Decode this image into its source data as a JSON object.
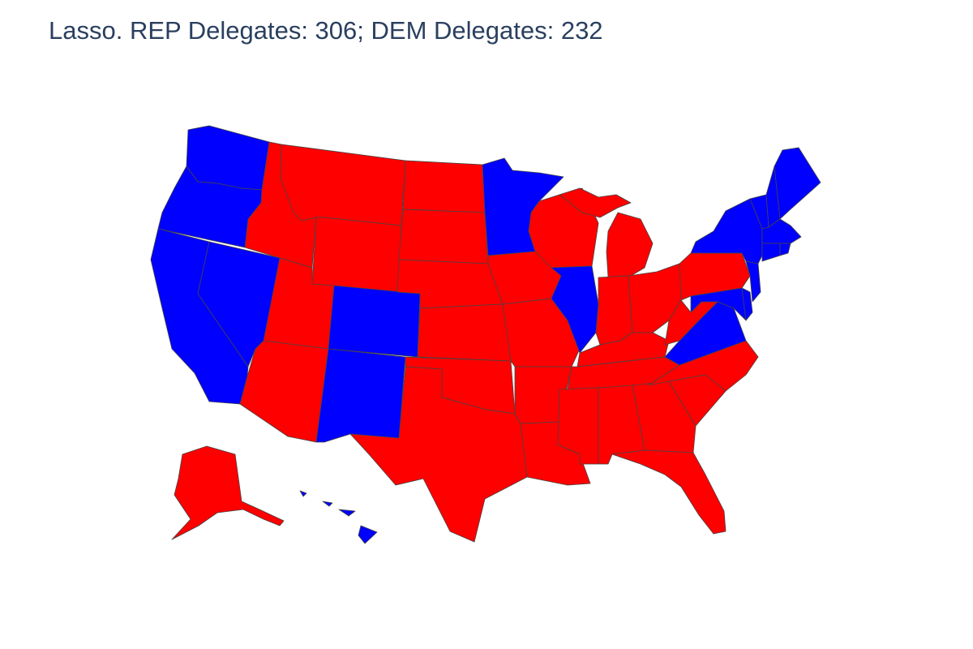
{
  "title": "Lasso. REP Delegates: 306; DEM Delegates: 232",
  "colors": {
    "REP": "#ff0000",
    "DEM": "#0000ff",
    "border": "#444444",
    "title": "#2a3f5f"
  },
  "chart_data": {
    "type": "choropleth",
    "title": "Lasso. REP Delegates: 306; DEM Delegates: 232",
    "totals": {
      "REP": 306,
      "DEM": 232
    },
    "winners": {
      "WA": "DEM",
      "OR": "DEM",
      "CA": "DEM",
      "NV": "DEM",
      "CO": "DEM",
      "NM": "DEM",
      "MN": "DEM",
      "IL": "DEM",
      "VA": "DEM",
      "MD": "DEM",
      "DE": "DEM",
      "NJ": "DEM",
      "NY": "DEM",
      "CT": "DEM",
      "RI": "DEM",
      "MA": "DEM",
      "VT": "DEM",
      "NH": "DEM",
      "ME": "DEM",
      "HI": "DEM",
      "DC": "DEM",
      "ID": "REP",
      "MT": "REP",
      "WY": "REP",
      "UT": "REP",
      "AZ": "REP",
      "ND": "REP",
      "SD": "REP",
      "NE": "REP",
      "KS": "REP",
      "OK": "REP",
      "TX": "REP",
      "IA": "REP",
      "MO": "REP",
      "AR": "REP",
      "LA": "REP",
      "WI": "REP",
      "MI": "REP",
      "IN": "REP",
      "OH": "REP",
      "KY": "REP",
      "TN": "REP",
      "MS": "REP",
      "AL": "REP",
      "GA": "REP",
      "FL": "REP",
      "SC": "REP",
      "NC": "REP",
      "WV": "REP",
      "PA": "REP",
      "AK": "REP"
    }
  }
}
